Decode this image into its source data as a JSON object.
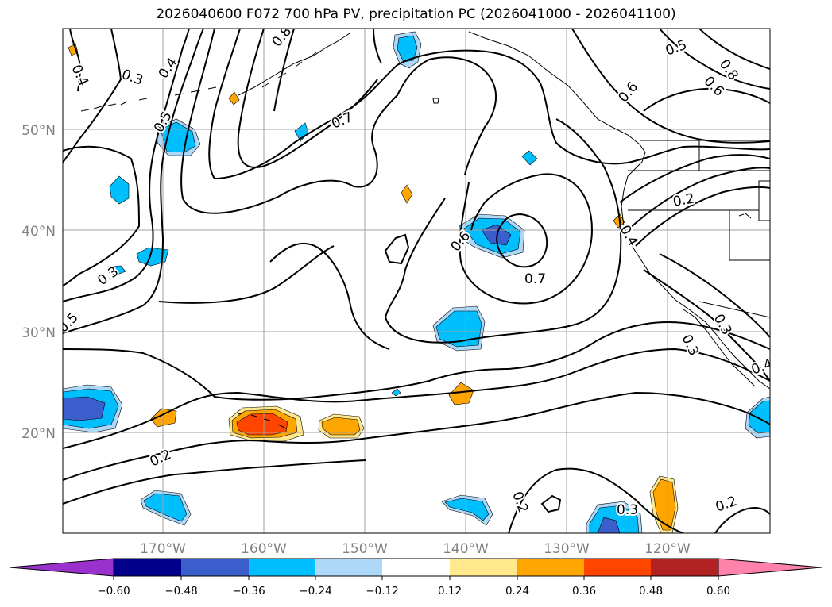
{
  "title": "2026040600 F072 700 hPa PV, precipitation PC (2026041000 - 2026041100)",
  "axes": {
    "lat_labels": [
      "50°N",
      "40°N",
      "30°N",
      "20°N"
    ],
    "lon_labels": [
      "170°W",
      "160°W",
      "150°W",
      "140°W",
      "130°W",
      "120°W"
    ]
  },
  "contour_labels": [
    "0.4",
    "0.3",
    "0.4",
    "0.8",
    "0.5",
    "0.7",
    "0.5",
    "0.6",
    "0.8",
    "0.6",
    "0.2",
    "0.4",
    "0.6",
    "0.7",
    "0.3",
    "0.5",
    "0.2",
    "0.3",
    "0.3",
    "0.4",
    "0.2",
    "0.3",
    "0.2"
  ],
  "colorbar": {
    "ticks": [
      "−0.60",
      "−0.48",
      "−0.36",
      "−0.24",
      "−0.12",
      "0.12",
      "0.24",
      "0.36",
      "0.48",
      "0.60"
    ],
    "colors": {
      "below": "#9932CC",
      "bins": [
        "#00008B",
        "#3A5FCD",
        "#00BFFF",
        "#ADD8F8",
        "#FFFFFF",
        "#FFE98C",
        "#FFA500",
        "#FF4500",
        "#B22222"
      ],
      "above": "#FF82AB"
    }
  },
  "palette": {
    "neg_weak": "#ADD8F8",
    "neg_mid": "#00BFFF",
    "neg_strong": "#3A5FCD",
    "pos_weak": "#FFE98C",
    "pos_mid": "#FFA500",
    "pos_strong": "#FF4500",
    "contour": "#000000",
    "grid": "#a0a0a0"
  }
}
